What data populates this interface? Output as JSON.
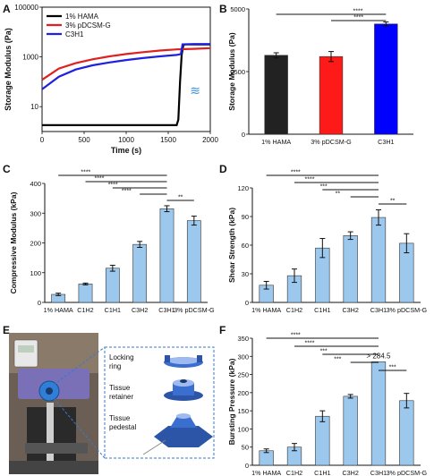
{
  "panels": {
    "A": {
      "letter": "A"
    },
    "B": {
      "letter": "B"
    },
    "C": {
      "letter": "C"
    },
    "D": {
      "letter": "D"
    },
    "E": {
      "letter": "E",
      "labels": {
        "locking": "Locking\nring",
        "retainer": "Tissue\nretainer",
        "pedestal": "Tissue\npedestal"
      }
    },
    "F": {
      "letter": "F"
    }
  },
  "colors": {
    "hama": "#000000",
    "pdcsm": "#e02020",
    "c3h1": "#2020e0",
    "bar_blue": "#9cc8ee",
    "bar_black": "#222222",
    "bar_red": "#ff1a1a",
    "bar_c3h1": "#0000ff"
  },
  "chart_data": [
    {
      "id": "A",
      "type": "line",
      "xlabel": "Time (s)",
      "ylabel": "Storage Modulus (Pa)",
      "xlim": [
        0,
        2000
      ],
      "ylim": [
        1,
        100000
      ],
      "yscale": "log",
      "xticks": [
        0,
        500,
        1000,
        1500,
        2000
      ],
      "yticks": [
        {
          "v": 10,
          "label": "10"
        },
        {
          "v": 1000,
          "label": "1000"
        },
        {
          "v": 100000,
          "label": "100000"
        }
      ],
      "legend": [
        "1% HAMA",
        "3% pDCSM-G",
        "C3H1"
      ],
      "series": [
        {
          "name": "1% HAMA",
          "points": [
            [
              0,
              1.8
            ],
            [
              1600,
              1.8
            ],
            [
              1620,
              3
            ],
            [
              1640,
              100
            ],
            [
              1660,
              1200
            ],
            [
              1680,
              3000
            ],
            [
              1700,
              3200
            ],
            [
              1800,
              3200
            ],
            [
              2000,
              3200
            ]
          ]
        },
        {
          "name": "3% pDCSM-G",
          "points": [
            [
              0,
              120
            ],
            [
              200,
              340
            ],
            [
              400,
              560
            ],
            [
              600,
              800
            ],
            [
              800,
              1050
            ],
            [
              1000,
              1300
            ],
            [
              1200,
              1550
            ],
            [
              1400,
              1800
            ],
            [
              1600,
              2000
            ],
            [
              1700,
              2050
            ],
            [
              1800,
              2100
            ],
            [
              2000,
              2250
            ]
          ]
        },
        {
          "name": "C3H1",
          "points": [
            [
              0,
              50
            ],
            [
              200,
              160
            ],
            [
              400,
              310
            ],
            [
              600,
              460
            ],
            [
              800,
              600
            ],
            [
              1000,
              750
            ],
            [
              1200,
              900
            ],
            [
              1400,
              1050
            ],
            [
              1600,
              1200
            ],
            [
              1650,
              1300
            ],
            [
              1670,
              3200
            ],
            [
              1800,
              3300
            ],
            [
              2000,
              3300
            ]
          ]
        }
      ]
    },
    {
      "id": "B",
      "type": "bar",
      "ylabel": "Storage Modulus (Pa)",
      "ylim": [
        0,
        5000
      ],
      "yticks": [
        0,
        2500,
        5000
      ],
      "categories": [
        "1% HAMA",
        "3% pDCSM-G",
        "C3H1"
      ],
      "values": [
        3150,
        3100,
        4400
      ],
      "errors": [
        100,
        200,
        80
      ],
      "significance": [
        {
          "from": 0,
          "to": 2,
          "label": "****"
        },
        {
          "from": 1,
          "to": 2,
          "label": "****"
        }
      ]
    },
    {
      "id": "C",
      "type": "bar",
      "ylabel": "Compressive Modulus (kPa)",
      "ylim": [
        0,
        400
      ],
      "yticks": [
        0,
        100,
        200,
        300,
        400
      ],
      "categories": [
        "1% HAMA",
        "C1H2",
        "C1H1",
        "C3H2",
        "C3H1",
        "3% pDCSM-G"
      ],
      "values": [
        27,
        62,
        115,
        195,
        315,
        275
      ],
      "errors": [
        4,
        3,
        10,
        10,
        10,
        15
      ],
      "significance": [
        {
          "from": 0,
          "to": 4,
          "label": "****"
        },
        {
          "from": 1,
          "to": 4,
          "label": "****"
        },
        {
          "from": 2,
          "to": 4,
          "label": "****"
        },
        {
          "from": 3,
          "to": 4,
          "label": "****"
        },
        {
          "from": 4,
          "to": 5,
          "label": "**"
        }
      ]
    },
    {
      "id": "D",
      "type": "bar",
      "ylabel": "Shear Strength (kPa)",
      "ylim": [
        0,
        120
      ],
      "yticks": [
        0,
        30,
        60,
        90,
        120
      ],
      "categories": [
        "1% HAMA",
        "C1H2",
        "C1H1",
        "C3H2",
        "C3H1",
        "3% pDCSM-G"
      ],
      "values": [
        18,
        28,
        57,
        70,
        89,
        62
      ],
      "errors": [
        4,
        7,
        10,
        4,
        8,
        10
      ],
      "significance": [
        {
          "from": 0,
          "to": 4,
          "label": "****"
        },
        {
          "from": 1,
          "to": 4,
          "label": "****"
        },
        {
          "from": 2,
          "to": 4,
          "label": "***"
        },
        {
          "from": 3,
          "to": 4,
          "label": "**"
        },
        {
          "from": 4,
          "to": 5,
          "label": "**"
        }
      ]
    },
    {
      "id": "F",
      "type": "bar",
      "ylabel": "Bursting Pressure (kPa)",
      "ylim": [
        0,
        350
      ],
      "yticks": [
        0,
        50,
        100,
        150,
        200,
        250,
        300,
        350
      ],
      "categories": [
        "1% HAMA",
        "C1H2",
        "C1H1",
        "C3H2",
        "C3H1",
        "3% pDCSM-G"
      ],
      "values": [
        40,
        50,
        135,
        190,
        285,
        178
      ],
      "errors": [
        5,
        10,
        15,
        5,
        0,
        20
      ],
      "annotation": {
        "index": 4,
        "text": "> 284.5"
      },
      "significance": [
        {
          "from": 0,
          "to": 4,
          "label": "****"
        },
        {
          "from": 1,
          "to": 4,
          "label": "****"
        },
        {
          "from": 2,
          "to": 4,
          "label": "***"
        },
        {
          "from": 3,
          "to": 4,
          "label": "***"
        },
        {
          "from": 4,
          "to": 5,
          "label": "***"
        }
      ]
    }
  ]
}
